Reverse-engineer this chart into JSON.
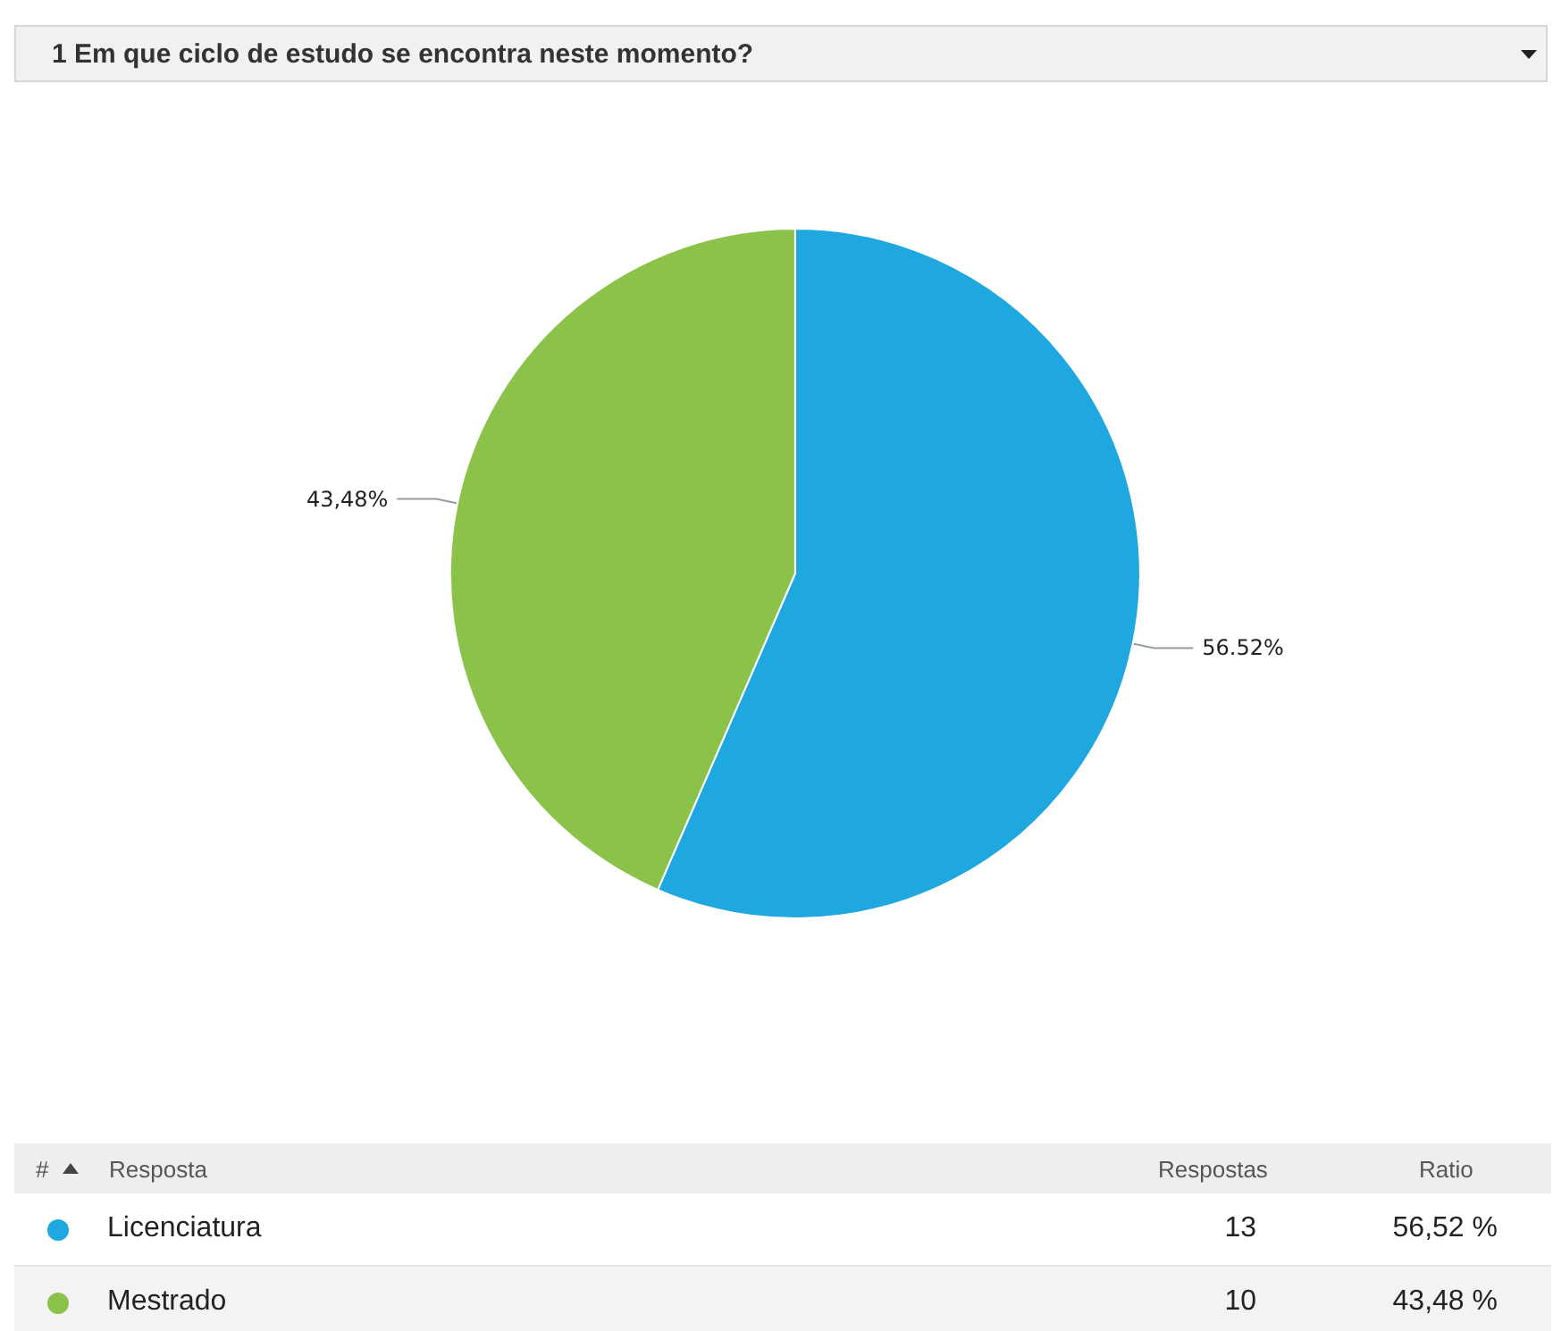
{
  "chart_data": {
    "type": "pie",
    "title": "1 Em que ciclo de estudo se encontra neste momento?",
    "categories": [
      "Licenciatura",
      "Mestrado"
    ],
    "values": [
      56.52,
      43.48
    ],
    "colors": [
      "#1fa8e0",
      "#8bc34a"
    ],
    "value_labels": [
      "56.52%",
      "43,48%"
    ],
    "annotations": [
      "#",
      "Resposta",
      "Respostas",
      "Ratio",
      "13",
      "56,52 %",
      "10",
      "43,48 %"
    ],
    "legend": "bottom"
  }
}
